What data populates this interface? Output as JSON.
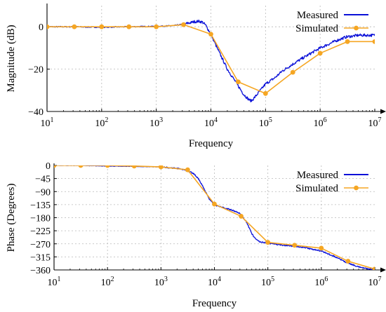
{
  "chart_data": [
    {
      "type": "line",
      "xlabel": "Frequency",
      "ylabel": "Magnitude (dB)",
      "xscale": "log",
      "xlim": [
        10,
        10000000
      ],
      "ylim": [
        -40,
        10
      ],
      "grid": true,
      "legend_position": "top-right",
      "x_ticks": [
        10,
        100,
        1000,
        10000,
        100000,
        1000000,
        10000000
      ],
      "x_tick_labels": [
        {
          "base": "10",
          "exp": "1"
        },
        {
          "base": "10",
          "exp": "2"
        },
        {
          "base": "10",
          "exp": "3"
        },
        {
          "base": "10",
          "exp": "4"
        },
        {
          "base": "10",
          "exp": "5"
        },
        {
          "base": "10",
          "exp": "6"
        },
        {
          "base": "10",
          "exp": "7"
        }
      ],
      "y_ticks": [
        0,
        -20,
        -40
      ],
      "y_tick_labels": [
        "0",
        "−20",
        "−40"
      ],
      "series": [
        {
          "name": "Measured",
          "color": "#0a10d8",
          "style": "line",
          "x": [
            10,
            30,
            100,
            300,
            1000,
            2000,
            3000,
            4000,
            5000,
            6000,
            7000,
            8000,
            10000,
            13000,
            20000,
            30000,
            40000,
            50000,
            55000,
            60000,
            70000,
            100000,
            150000,
            200000,
            300000,
            500000,
            1000000,
            2000000,
            3000000,
            5000000,
            10000000
          ],
          "y": [
            0,
            0,
            -0.2,
            0,
            0.2,
            0.5,
            1.1,
            1.8,
            2.4,
            2.6,
            2.2,
            0.8,
            -3.5,
            -10,
            -20,
            -27,
            -32,
            -34.5,
            -35,
            -34,
            -32,
            -27,
            -24,
            -21,
            -18,
            -14.5,
            -10,
            -6.5,
            -4.8,
            -4,
            -4
          ]
        },
        {
          "name": "Simulated",
          "color": "#f5a623",
          "style": "line-marker",
          "x": [
            10,
            31.6,
            100,
            316,
            1000,
            3160,
            10000,
            31600,
            100000,
            316000,
            1000000,
            3160000,
            10000000
          ],
          "y": [
            0,
            0,
            0,
            0,
            0,
            1,
            -3.5,
            -26,
            -31.5,
            -21.5,
            -12.5,
            -7,
            -7
          ]
        }
      ]
    },
    {
      "type": "line",
      "xlabel": "Frequency",
      "ylabel": "Phase (Degrees)",
      "xscale": "log",
      "xlim": [
        10,
        10000000
      ],
      "ylim": [
        -360,
        0
      ],
      "grid": true,
      "legend_position": "top-right",
      "x_ticks": [
        10,
        100,
        1000,
        10000,
        100000,
        1000000,
        10000000
      ],
      "x_tick_labels": [
        {
          "base": "10",
          "exp": "1"
        },
        {
          "base": "10",
          "exp": "2"
        },
        {
          "base": "10",
          "exp": "3"
        },
        {
          "base": "10",
          "exp": "4"
        },
        {
          "base": "10",
          "exp": "5"
        },
        {
          "base": "10",
          "exp": "6"
        },
        {
          "base": "10",
          "exp": "7"
        }
      ],
      "y_ticks": [
        0,
        -45,
        -90,
        -135,
        -180,
        -225,
        -270,
        -315,
        -360
      ],
      "y_tick_labels": [
        "0",
        "−45",
        "−90",
        "−135",
        "−180",
        "−225",
        "−270",
        "−315",
        "−360"
      ],
      "series": [
        {
          "name": "Measured",
          "color": "#0a10d8",
          "style": "line",
          "x": [
            10,
            30,
            100,
            300,
            1000,
            2000,
            3000,
            4000,
            5000,
            6000,
            7000,
            8000,
            10000,
            13000,
            20000,
            30000,
            40000,
            50000,
            60000,
            70000,
            100000,
            200000,
            300000,
            500000,
            1000000,
            2000000,
            3000000,
            5000000,
            10000000
          ],
          "y": [
            0,
            0,
            -2,
            -3,
            -5,
            -10,
            -17,
            -27,
            -45,
            -70,
            -95,
            -115,
            -135,
            -143,
            -152,
            -165,
            -195,
            -235,
            -255,
            -262,
            -268,
            -275,
            -278,
            -283,
            -295,
            -318,
            -335,
            -350,
            -360
          ]
        },
        {
          "name": "Simulated",
          "color": "#f5a623",
          "style": "line-marker",
          "x": [
            10,
            31.6,
            100,
            316,
            1000,
            3160,
            10000,
            31600,
            100000,
            316000,
            1000000,
            3160000,
            10000000
          ],
          "y": [
            0,
            0,
            0,
            -2,
            -5,
            -15,
            -133,
            -175,
            -265,
            -275,
            -285,
            -330,
            -357
          ]
        }
      ]
    }
  ]
}
